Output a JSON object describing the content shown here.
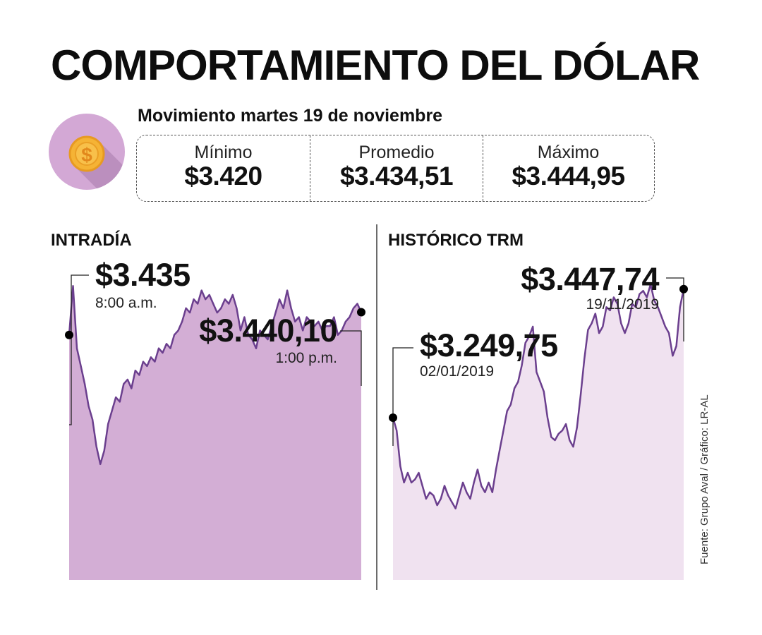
{
  "title": "COMPORTAMIENTO DEL DÓLAR",
  "subtitle": "Movimiento martes 19 de noviembre",
  "icon": {
    "name": "dollar-coin-icon",
    "symbol": "$",
    "circle_color": "#d3a8d5",
    "coin_color": "#f5b335"
  },
  "stats": [
    {
      "label": "Mínimo",
      "value": "$3.420"
    },
    {
      "label": "Promedio",
      "value": "$3.434,51"
    },
    {
      "label": "Máximo",
      "value": "$3.444,95"
    }
  ],
  "source": "Fuente: Grupo Aval / Gráfico: LR-AL",
  "colors": {
    "line": "#6b3f8e",
    "intraday_fill": "#d3aed5",
    "historic_fill": "#f0e2f0",
    "divider": "#6b6b6b"
  },
  "chart_data": [
    {
      "type": "area",
      "title": "INTRADÍA",
      "xlabel": "",
      "ylabel": "",
      "ylim": [
        3380,
        3450
      ],
      "start": {
        "value": "$3.435",
        "label": "8:00 a.m.",
        "numeric": 3435
      },
      "end": {
        "value": "$3.440,10",
        "label": "1:00 p.m.",
        "numeric": 3440.1
      },
      "values": [
        3435,
        3446,
        3432,
        3428,
        3424,
        3419,
        3416,
        3410,
        3406,
        3409,
        3415,
        3418,
        3421,
        3420,
        3424,
        3425,
        3423,
        3427,
        3426,
        3429,
        3428,
        3430,
        3429,
        3432,
        3431,
        3433,
        3432,
        3435,
        3436,
        3438,
        3441,
        3440,
        3443,
        3442,
        3445,
        3443,
        3444,
        3442,
        3440,
        3441,
        3443,
        3442,
        3444,
        3441,
        3436,
        3439,
        3435,
        3434,
        3432,
        3436,
        3435,
        3434,
        3437,
        3440,
        3443,
        3441,
        3445,
        3441,
        3438,
        3439,
        3436,
        3439,
        3438,
        3437,
        3438,
        3436,
        3437,
        3437,
        3439,
        3435,
        3436,
        3438,
        3439,
        3441,
        3442,
        3440.1
      ]
    },
    {
      "type": "area",
      "title": "HISTÓRICO TRM",
      "xlabel": "",
      "ylabel": "",
      "ylim": [
        3000,
        3480
      ],
      "start": {
        "value": "$3.249,75",
        "label": "02/01/2019",
        "numeric": 3249.75
      },
      "end": {
        "value": "$3.447,74",
        "label": "19/11/2019",
        "numeric": 3447.74
      },
      "values": [
        3249.75,
        3230,
        3175,
        3150,
        3165,
        3150,
        3155,
        3165,
        3145,
        3125,
        3135,
        3130,
        3115,
        3125,
        3145,
        3130,
        3120,
        3110,
        3130,
        3150,
        3135,
        3125,
        3150,
        3170,
        3145,
        3135,
        3150,
        3135,
        3170,
        3200,
        3230,
        3260,
        3270,
        3295,
        3305,
        3330,
        3365,
        3375,
        3390,
        3320,
        3305,
        3290,
        3250,
        3220,
        3215,
        3225,
        3230,
        3240,
        3215,
        3205,
        3235,
        3285,
        3340,
        3385,
        3395,
        3410,
        3380,
        3390,
        3420,
        3415,
        3435,
        3425,
        3395,
        3380,
        3395,
        3425,
        3420,
        3440,
        3445,
        3435,
        3455,
        3430,
        3420,
        3405,
        3390,
        3380,
        3345,
        3360,
        3420,
        3447.74
      ]
    }
  ]
}
